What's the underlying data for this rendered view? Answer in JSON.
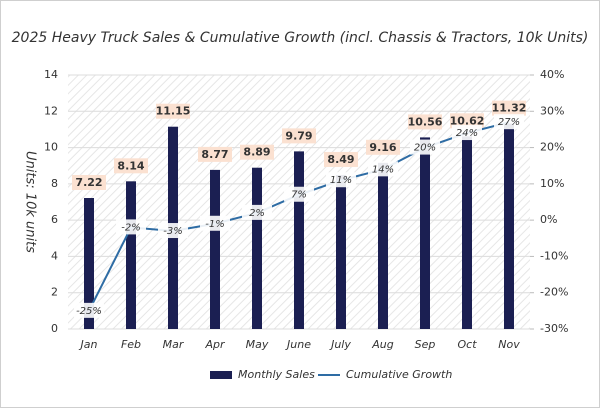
{
  "chart_data": {
    "type": "bar-line",
    "title": "2025 Heavy Truck Sales & Cumulative Growth (incl. Chassis & Tractors, 10k Units)",
    "ylabel": "Units: 10k units",
    "categories": [
      "Jan",
      "Feb",
      "Mar",
      "Apr",
      "May",
      "June",
      "July",
      "Aug",
      "Sep",
      "Oct",
      "Nov"
    ],
    "series": [
      {
        "name": "Monthly Sales",
        "type": "bar",
        "color": "#1b1f52",
        "values": [
          7.22,
          8.14,
          11.15,
          8.77,
          8.89,
          9.79,
          8.49,
          9.16,
          10.56,
          10.62,
          11.32
        ]
      },
      {
        "name": "Cumulative Growth",
        "type": "line",
        "axis": "y2",
        "color": "#2e6ca4",
        "values": [
          -25,
          -2,
          -3,
          -1,
          2,
          7,
          11,
          14,
          20,
          24,
          27
        ],
        "value_labels": [
          "-25%",
          "-2%",
          "-3%",
          "-1%",
          "2%",
          "7%",
          "11%",
          "14%",
          "20%",
          "24%",
          "27%"
        ]
      }
    ],
    "ylim": [
      0,
      14
    ],
    "yticks": [
      0,
      2,
      4,
      6,
      8,
      10,
      12,
      14
    ],
    "y2lim": [
      -30,
      40
    ],
    "y2ticks": [
      {
        "value": -30,
        "label": "-30%"
      },
      {
        "value": -20,
        "label": "-20%"
      },
      {
        "value": -10,
        "label": "-10%"
      },
      {
        "value": 0,
        "label": "0%"
      },
      {
        "value": 10,
        "label": "10%"
      },
      {
        "value": 20,
        "label": "20%"
      },
      {
        "value": 30,
        "label": "30%"
      },
      {
        "value": 40,
        "label": "40%"
      }
    ],
    "grid": true
  }
}
